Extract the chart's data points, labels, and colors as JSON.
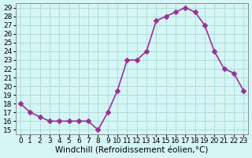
{
  "x": [
    0,
    1,
    2,
    3,
    4,
    5,
    6,
    7,
    8,
    9,
    10,
    11,
    12,
    13,
    14,
    15,
    16,
    17,
    18,
    19,
    20,
    21,
    22,
    23
  ],
  "y": [
    18,
    17,
    16.5,
    16,
    16,
    16,
    16,
    16,
    15,
    17,
    19.5,
    23,
    23,
    24,
    27.5,
    28,
    28.5,
    29,
    28.5,
    27,
    24,
    22,
    21.5,
    19.5
  ],
  "line_color": "#993399",
  "marker": "D",
  "marker_size": 3,
  "bg_color": "#d6f5f5",
  "grid_color": "#aadddd",
  "xlabel": "Windchill (Refroidissement éolien,°C)",
  "xlabel_fontsize": 7.5,
  "ylabel_ticks": [
    15,
    16,
    17,
    18,
    19,
    20,
    21,
    22,
    23,
    24,
    25,
    26,
    27,
    28,
    29
  ],
  "xlim": [
    -0.5,
    23.5
  ],
  "ylim": [
    14.5,
    29.5
  ],
  "tick_fontsize": 6.5,
  "line_width": 1.2
}
